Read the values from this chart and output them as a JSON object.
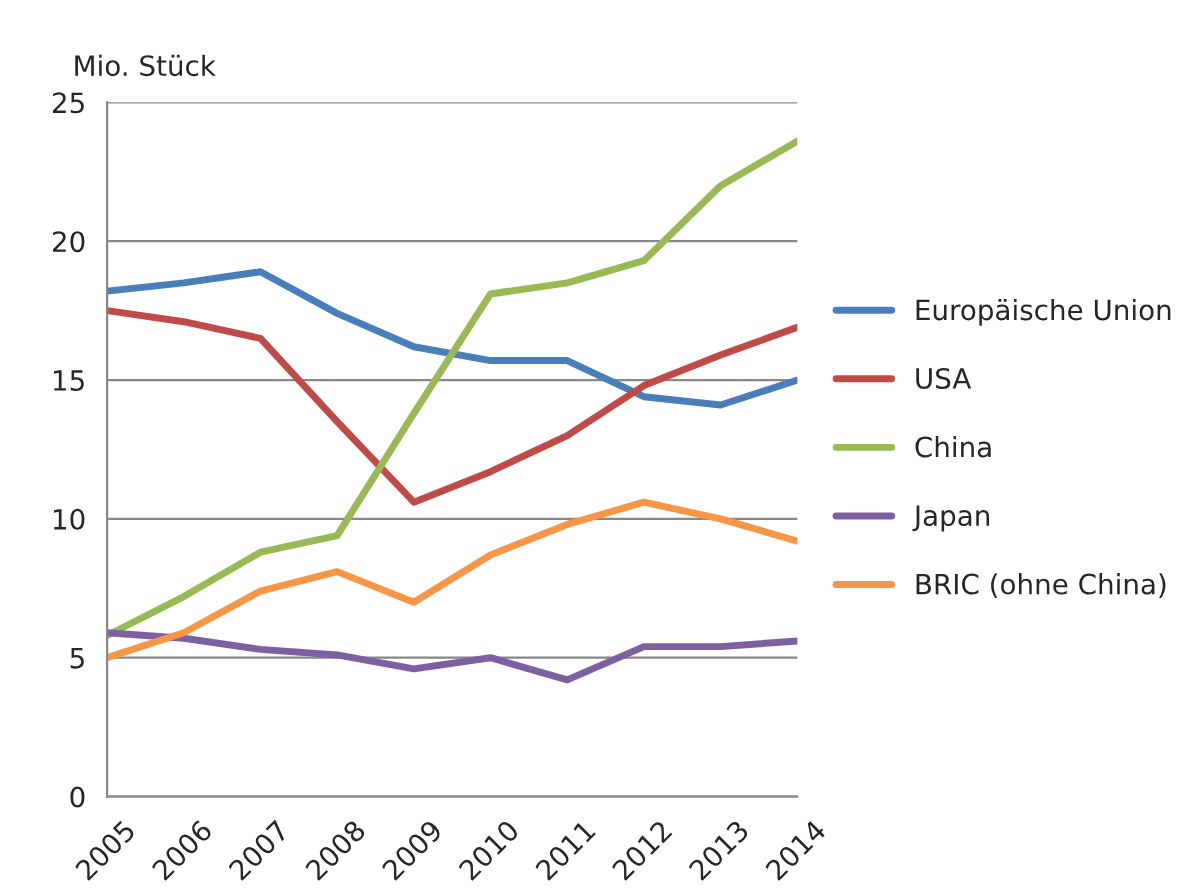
{
  "chart_data": {
    "type": "line",
    "ylabel": "Mio. Stück",
    "categories": [
      "2005",
      "2006",
      "2007",
      "2008",
      "2009",
      "2010",
      "2011",
      "2012",
      "2013",
      "2014"
    ],
    "series": [
      {
        "name": "Europäische Union",
        "color": "#4a7ebb",
        "values": [
          18.2,
          18.5,
          18.9,
          17.4,
          16.2,
          15.7,
          15.7,
          14.4,
          14.1,
          15.0
        ]
      },
      {
        "name": "USA",
        "color": "#be4b48",
        "values": [
          17.5,
          17.1,
          16.5,
          13.5,
          10.6,
          11.7,
          13.0,
          14.8,
          15.9,
          16.9
        ]
      },
      {
        "name": "China",
        "color": "#98b954",
        "values": [
          5.8,
          7.2,
          8.8,
          9.4,
          13.8,
          18.1,
          18.5,
          19.3,
          22.0,
          23.6
        ]
      },
      {
        "name": "Japan",
        "color": "#7d60a0",
        "values": [
          5.9,
          5.7,
          5.3,
          5.1,
          4.6,
          5.0,
          4.2,
          5.4,
          5.4,
          5.6
        ]
      },
      {
        "name": "BRIC (ohne China)",
        "color": "#f79646",
        "values": [
          5.0,
          5.9,
          7.4,
          8.1,
          7.0,
          8.7,
          9.8,
          10.6,
          10.0,
          9.2
        ]
      }
    ],
    "ylim": [
      0,
      25
    ],
    "yticks": [
      0,
      5,
      10,
      15,
      20,
      25
    ],
    "grid": "y",
    "legend": "right",
    "marker": "none",
    "line_style": "solid"
  }
}
